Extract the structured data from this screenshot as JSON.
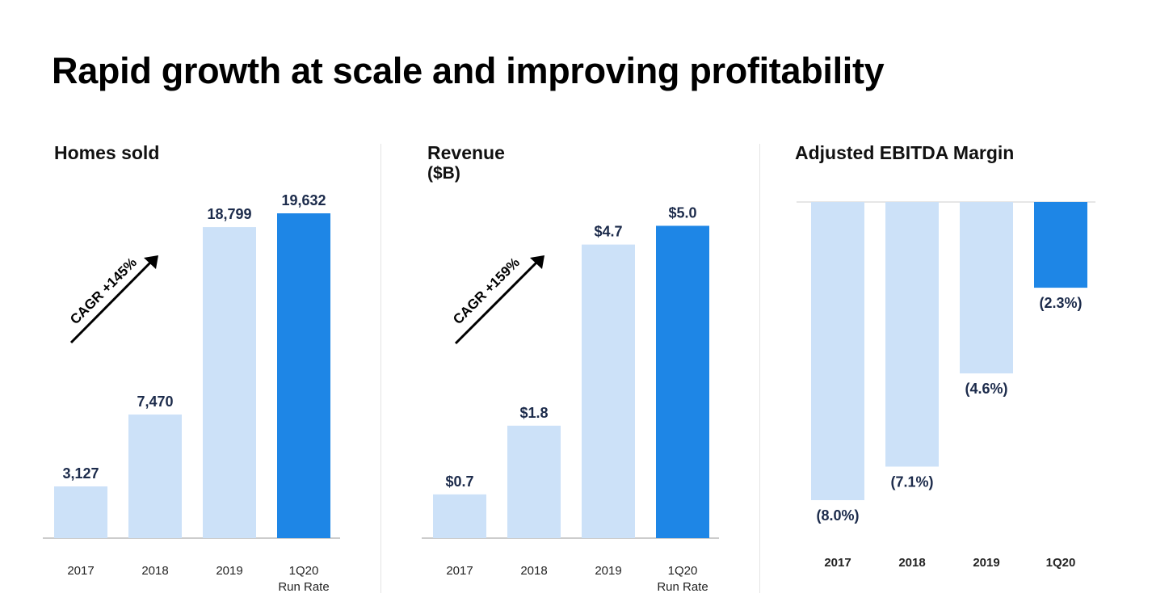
{
  "page": {
    "title": "Rapid growth at scale and improving profitability"
  },
  "colors": {
    "bar_light": "#cce1f8",
    "bar_highlight": "#1e86e6",
    "value_text": "#1c2b4b",
    "axis": "#999999"
  },
  "chart_data": [
    {
      "type": "bar",
      "title": "Homes sold",
      "unit": "",
      "categories": [
        "2017",
        "2018",
        "2019",
        "1Q20"
      ],
      "category_sublabels": [
        "",
        "",
        "",
        "Run Rate"
      ],
      "values": [
        3127,
        7470,
        18799,
        19632
      ],
      "value_labels": [
        "3,127",
        "7,470",
        "18,799",
        "19,632"
      ],
      "highlight_index": 3,
      "ylim": [
        0,
        21000
      ],
      "annotation": "CAGR +145%",
      "grid": false
    },
    {
      "type": "bar",
      "title": "Revenue",
      "unit": "($B)",
      "categories": [
        "2017",
        "2018",
        "2019",
        "1Q20"
      ],
      "category_sublabels": [
        "",
        "",
        "",
        "Run Rate"
      ],
      "values": [
        0.7,
        1.8,
        4.7,
        5.0
      ],
      "value_labels": [
        "$0.7",
        "$1.8",
        "$4.7",
        "$5.0"
      ],
      "highlight_index": 3,
      "ylim": [
        0,
        5.2
      ],
      "annotation": "CAGR +159%",
      "grid": false
    },
    {
      "type": "bar",
      "title": "Adjusted EBITDA Margin",
      "unit": "",
      "categories": [
        "2017",
        "2018",
        "2019",
        "1Q20"
      ],
      "category_sublabels": [
        "",
        "",
        "",
        ""
      ],
      "values": [
        -8.0,
        -7.1,
        -4.6,
        -2.3
      ],
      "value_labels": [
        "(8.0%)",
        "(7.1%)",
        "(4.6%)",
        "(2.3%)"
      ],
      "highlight_index": 3,
      "ylim": [
        -8.0,
        0
      ],
      "annotation": "",
      "grid": false
    }
  ]
}
